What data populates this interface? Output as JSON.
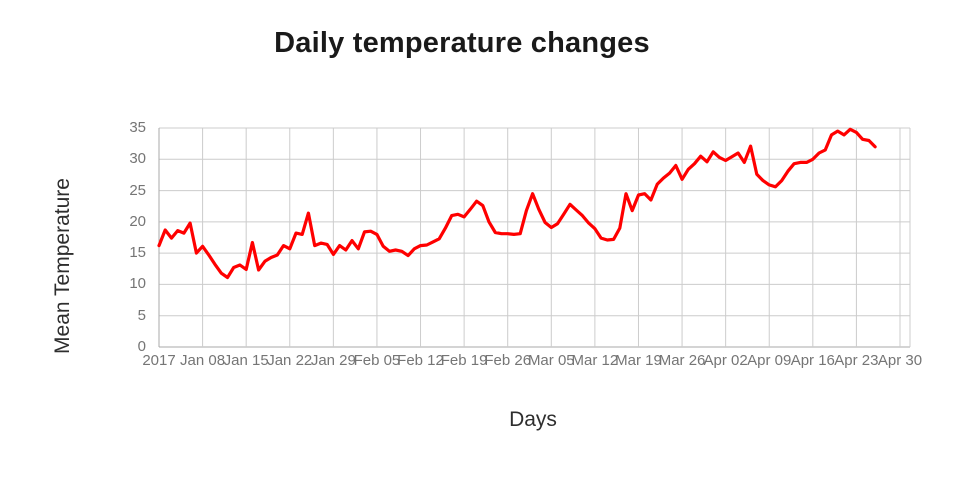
{
  "chart_data": {
    "type": "line",
    "title": "Daily temperature changes",
    "xlabel": "Days",
    "ylabel": "Mean Temperature",
    "x_tick_labels": [
      "2017",
      "Jan 08",
      "Jan 15",
      "Jan 22",
      "Jan 29",
      "Feb 05",
      "Feb 12",
      "Feb 19",
      "Feb 26",
      "Mar 05",
      "Mar 12",
      "Mar 19",
      "Mar 26",
      "Apr 02",
      "Apr 09",
      "Apr 16",
      "Apr 23",
      "Apr 30"
    ],
    "y_ticks": [
      0,
      5,
      10,
      15,
      20,
      25,
      30,
      35
    ],
    "ylim": [
      0,
      35
    ],
    "grid": true,
    "legend": "none",
    "colors": {
      "line": "#ff0000",
      "grid": "#cccccc",
      "axis": "#a9a9a9",
      "tick_text": "#757575",
      "title_text": "#1a1a1a"
    },
    "series": [
      {
        "name": "Mean Temperature",
        "x_unit": "day",
        "x_start_tick": "2017",
        "points_spacing_days": 1,
        "values": [
          16.2,
          18.7,
          17.4,
          18.6,
          18.2,
          19.8,
          15.0,
          16.1,
          14.7,
          13.2,
          11.8,
          11.1,
          12.7,
          13.1,
          12.4,
          16.7,
          12.3,
          13.7,
          14.3,
          14.7,
          16.2,
          15.7,
          18.2,
          18.0,
          21.4,
          16.2,
          16.6,
          16.4,
          14.8,
          16.2,
          15.5,
          17.0,
          15.7,
          18.4,
          18.5,
          18.0,
          16.1,
          15.3,
          15.5,
          15.3,
          14.6,
          15.7,
          16.2,
          16.3,
          16.8,
          17.3,
          19.0,
          21.0,
          21.2,
          20.8,
          22.0,
          23.3,
          22.6,
          20.0,
          18.3,
          18.1,
          18.1,
          18.0,
          18.1,
          21.8,
          24.5,
          22.0,
          19.9,
          19.1,
          19.7,
          21.2,
          22.8,
          21.9,
          21.0,
          19.8,
          18.9,
          17.4,
          17.1,
          17.2,
          19.0,
          24.5,
          21.8,
          24.3,
          24.5,
          23.5,
          26.0,
          27.0,
          27.8,
          29.0,
          26.8,
          28.4,
          29.3,
          30.5,
          29.6,
          31.2,
          30.3,
          29.8,
          30.4,
          31.0,
          29.5,
          32.1,
          27.6,
          26.6,
          25.9,
          25.6,
          26.6,
          28.1,
          29.3,
          29.5,
          29.5,
          30.0,
          31.0,
          31.5,
          33.9,
          34.5,
          33.9,
          34.8,
          34.3,
          33.2,
          33.0,
          32.0
        ]
      }
    ]
  }
}
